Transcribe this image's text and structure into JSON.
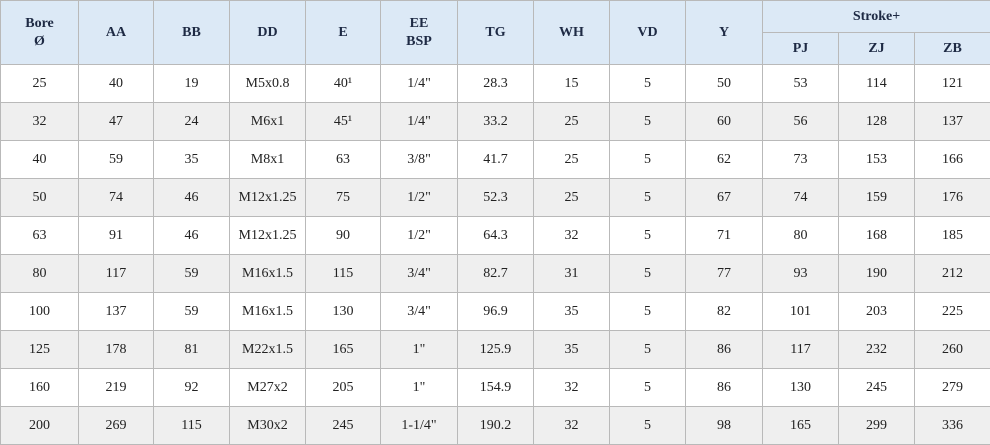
{
  "table": {
    "columns": [
      [
        "Bore",
        "Ø"
      ],
      [
        "AA"
      ],
      [
        "BB"
      ],
      [
        "DD"
      ],
      [
        "E"
      ],
      [
        "EE",
        "BSP"
      ],
      [
        "TG"
      ],
      [
        "WH"
      ],
      [
        "VD"
      ],
      [
        "Y"
      ]
    ],
    "group": {
      "label": "Stroke+",
      "columns": [
        "PJ",
        "ZJ",
        "ZB"
      ]
    },
    "rows": [
      [
        25,
        40,
        19,
        "M5x0.8",
        "40¹",
        "1/4\"",
        28.3,
        15,
        5,
        50,
        53,
        114,
        121
      ],
      [
        32,
        47,
        24,
        "M6x1",
        "45¹",
        "1/4\"",
        33.2,
        25,
        5,
        60,
        56,
        128,
        137
      ],
      [
        40,
        59,
        35,
        "M8x1",
        63,
        "3/8\"",
        41.7,
        25,
        5,
        62,
        73,
        153,
        166
      ],
      [
        50,
        74,
        46,
        "M12x1.25",
        75,
        "1/2\"",
        52.3,
        25,
        5,
        67,
        74,
        159,
        176
      ],
      [
        63,
        91,
        46,
        "M12x1.25",
        90,
        "1/2\"",
        64.3,
        32,
        5,
        71,
        80,
        168,
        185
      ],
      [
        80,
        117,
        59,
        "M16x1.5",
        115,
        "3/4\"",
        82.7,
        31,
        5,
        77,
        93,
        190,
        212
      ],
      [
        100,
        137,
        59,
        "M16x1.5",
        130,
        "3/4\"",
        96.9,
        35,
        5,
        82,
        101,
        203,
        225
      ],
      [
        125,
        178,
        81,
        "M22x1.5",
        165,
        "1\"",
        125.9,
        35,
        5,
        86,
        117,
        232,
        260
      ],
      [
        160,
        219,
        92,
        "M27x2",
        205,
        "1\"",
        154.9,
        32,
        5,
        86,
        130,
        245,
        279
      ],
      [
        200,
        269,
        115,
        "M30x2",
        245,
        "1-1/4\"",
        190.2,
        32,
        5,
        98,
        165,
        299,
        336
      ]
    ]
  }
}
